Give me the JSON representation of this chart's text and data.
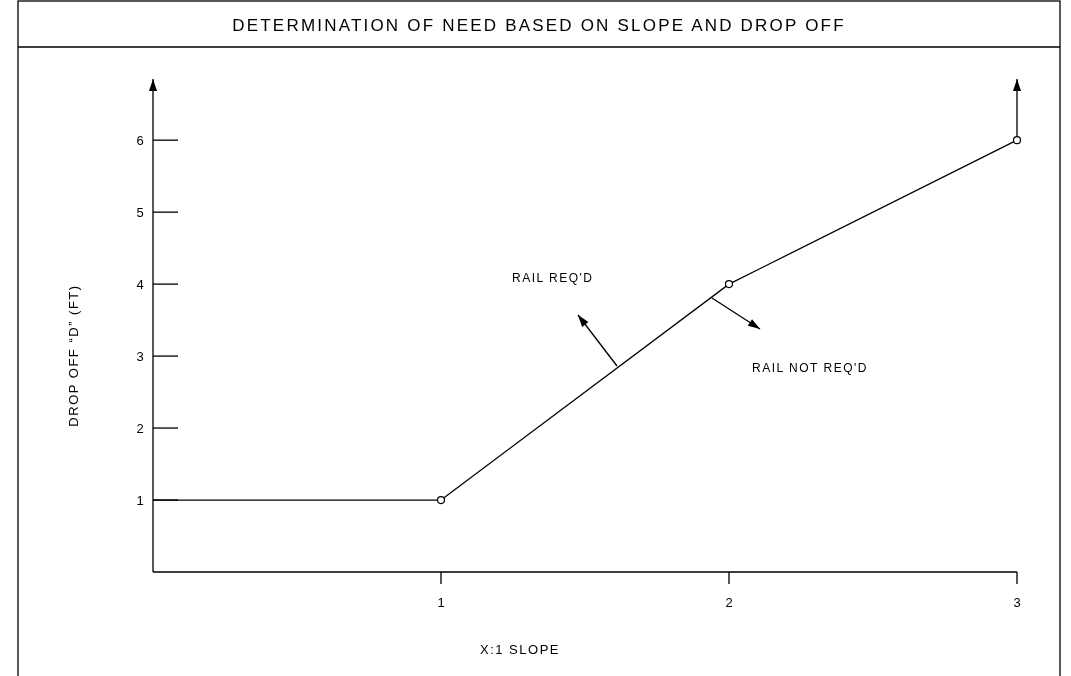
{
  "chart_data": {
    "type": "line",
    "title": "DETERMINATION OF NEED BASED ON SLOPE AND DROP OFF",
    "xlabel": "X:1 SLOPE",
    "ylabel": "DROP OFF “D” (FT)",
    "xlim": [
      0,
      3
    ],
    "ylim": [
      0,
      6.85
    ],
    "xticks": [
      1,
      2,
      3
    ],
    "yticks": [
      1,
      2,
      3,
      4,
      5,
      6
    ],
    "grid": false,
    "series": [
      {
        "x": [
          0,
          1,
          2,
          3
        ],
        "values": [
          1,
          1,
          4,
          6
        ],
        "color": "#000000",
        "marker": "none",
        "line_style": "solid"
      },
      {
        "type": "scatter",
        "x": [
          1,
          2,
          3
        ],
        "values": [
          1,
          4,
          6
        ],
        "color": "#000000",
        "marker": "circle"
      }
    ],
    "annotations": [
      "RAIL REQ'D",
      "RAIL NOT REQ'D"
    ]
  }
}
